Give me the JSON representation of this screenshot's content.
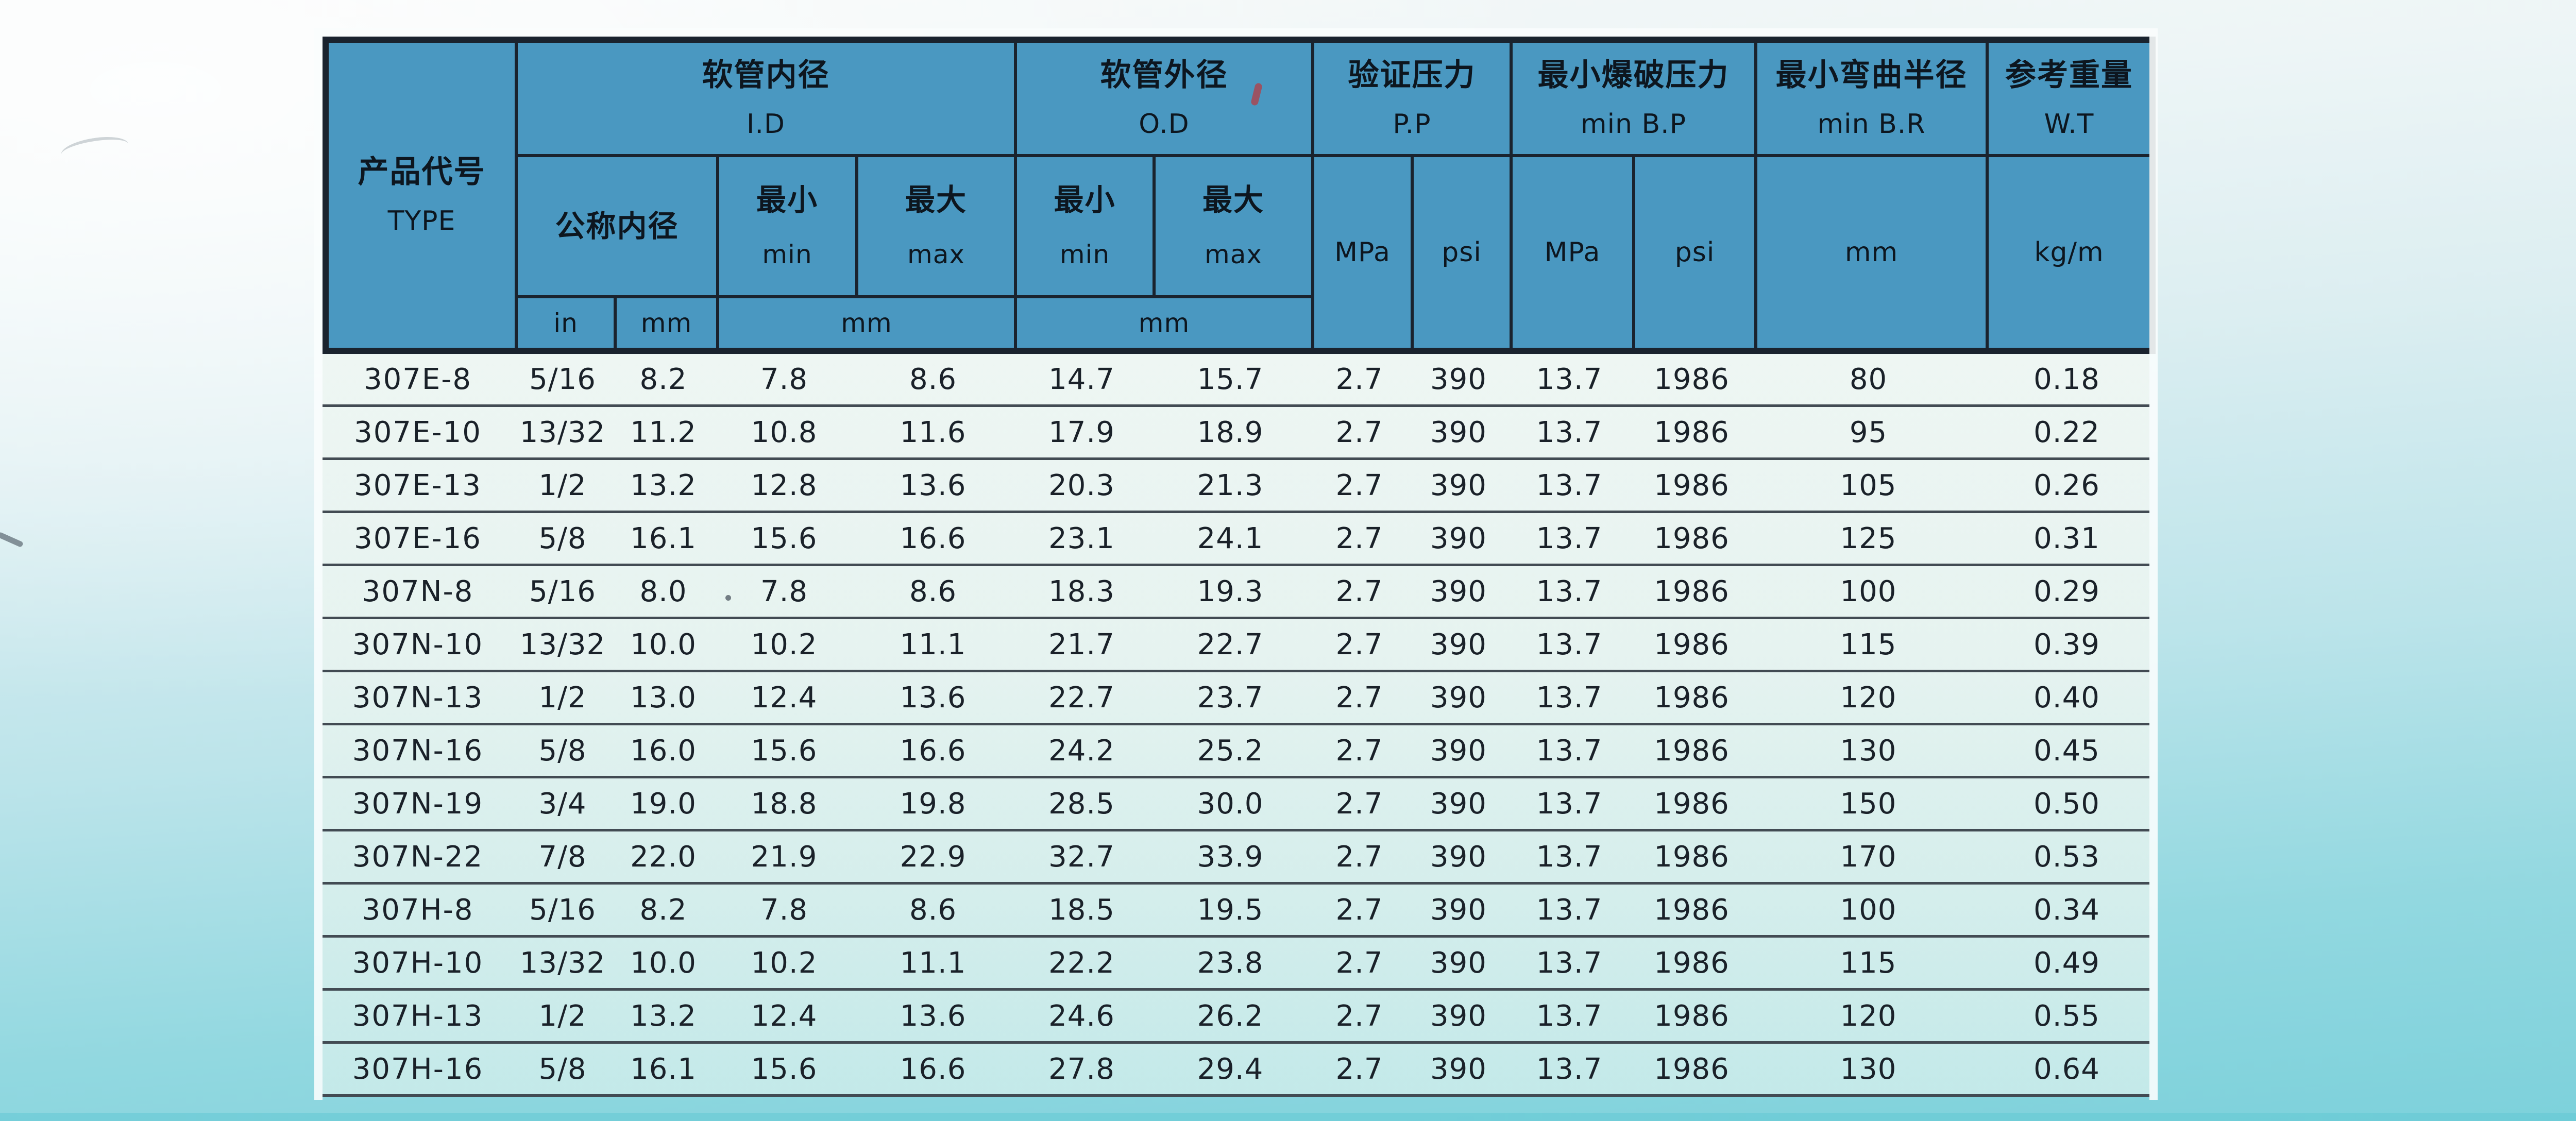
{
  "colors": {
    "header_blue": "#4a98c1",
    "border_dark": "#1a232e",
    "row_separator": "#424b53",
    "data_bg_top": "#eef6f3",
    "data_bg_bottom": "#c3e9e9",
    "page_top": "#f5f8f8",
    "page_bottom": "#7dd1db",
    "speck_red": "#a84752"
  },
  "table": {
    "header": {
      "product": {
        "zh": "产品代号",
        "en": "TYPE"
      },
      "id": {
        "zh": "软管内径",
        "en": "I.D"
      },
      "od": {
        "zh": "软管外径",
        "en": "O.D"
      },
      "pp": {
        "zh": "验证压力",
        "en": "P.P"
      },
      "bp": {
        "zh": "最小爆破压力",
        "en": "min B.P"
      },
      "br": {
        "zh": "最小弯曲半径",
        "en": "min B.R"
      },
      "wt": {
        "zh": "参考重量",
        "en": "W.T"
      },
      "nominal": {
        "zh": "公称内径"
      },
      "min": {
        "zh": "最小",
        "en": "min"
      },
      "max": {
        "zh": "最大",
        "en": "max"
      },
      "units": {
        "in": "in",
        "mm": "mm",
        "mpa": "MPa",
        "psi": "psi",
        "kgm": "kg/m"
      }
    },
    "columns": [
      "type",
      "in",
      "mm",
      "id_min",
      "id_max",
      "od_min",
      "od_max",
      "pp_mpa",
      "pp_psi",
      "bp_mpa",
      "bp_psi",
      "br_mm",
      "wt_kgm"
    ],
    "rows": [
      [
        "307E-8",
        "5/16",
        "8.2",
        "7.8",
        "8.6",
        "14.7",
        "15.7",
        "2.7",
        "390",
        "13.7",
        "1986",
        "80",
        "0.18"
      ],
      [
        "307E-10",
        "13/32",
        "11.2",
        "10.8",
        "11.6",
        "17.9",
        "18.9",
        "2.7",
        "390",
        "13.7",
        "1986",
        "95",
        "0.22"
      ],
      [
        "307E-13",
        "1/2",
        "13.2",
        "12.8",
        "13.6",
        "20.3",
        "21.3",
        "2.7",
        "390",
        "13.7",
        "1986",
        "105",
        "0.26"
      ],
      [
        "307E-16",
        "5/8",
        "16.1",
        "15.6",
        "16.6",
        "23.1",
        "24.1",
        "2.7",
        "390",
        "13.7",
        "1986",
        "125",
        "0.31"
      ],
      [
        "307N-8",
        "5/16",
        "8.0",
        "7.8",
        "8.6",
        "18.3",
        "19.3",
        "2.7",
        "390",
        "13.7",
        "1986",
        "100",
        "0.29"
      ],
      [
        "307N-10",
        "13/32",
        "10.0",
        "10.2",
        "11.1",
        "21.7",
        "22.7",
        "2.7",
        "390",
        "13.7",
        "1986",
        "115",
        "0.39"
      ],
      [
        "307N-13",
        "1/2",
        "13.0",
        "12.4",
        "13.6",
        "22.7",
        "23.7",
        "2.7",
        "390",
        "13.7",
        "1986",
        "120",
        "0.40"
      ],
      [
        "307N-16",
        "5/8",
        "16.0",
        "15.6",
        "16.6",
        "24.2",
        "25.2",
        "2.7",
        "390",
        "13.7",
        "1986",
        "130",
        "0.45"
      ],
      [
        "307N-19",
        "3/4",
        "19.0",
        "18.8",
        "19.8",
        "28.5",
        "30.0",
        "2.7",
        "390",
        "13.7",
        "1986",
        "150",
        "0.50"
      ],
      [
        "307N-22",
        "7/8",
        "22.0",
        "21.9",
        "22.9",
        "32.7",
        "33.9",
        "2.7",
        "390",
        "13.7",
        "1986",
        "170",
        "0.53"
      ],
      [
        "307H-8",
        "5/16",
        "8.2",
        "7.8",
        "8.6",
        "18.5",
        "19.5",
        "2.7",
        "390",
        "13.7",
        "1986",
        "100",
        "0.34"
      ],
      [
        "307H-10",
        "13/32",
        "10.0",
        "10.2",
        "11.1",
        "22.2",
        "23.8",
        "2.7",
        "390",
        "13.7",
        "1986",
        "115",
        "0.49"
      ],
      [
        "307H-13",
        "1/2",
        "13.2",
        "12.4",
        "13.6",
        "24.6",
        "26.2",
        "2.7",
        "390",
        "13.7",
        "1986",
        "120",
        "0.55"
      ],
      [
        "307H-16",
        "5/8",
        "16.1",
        "15.6",
        "16.6",
        "27.8",
        "29.4",
        "2.7",
        "390",
        "13.7",
        "1986",
        "130",
        "0.64"
      ]
    ]
  }
}
